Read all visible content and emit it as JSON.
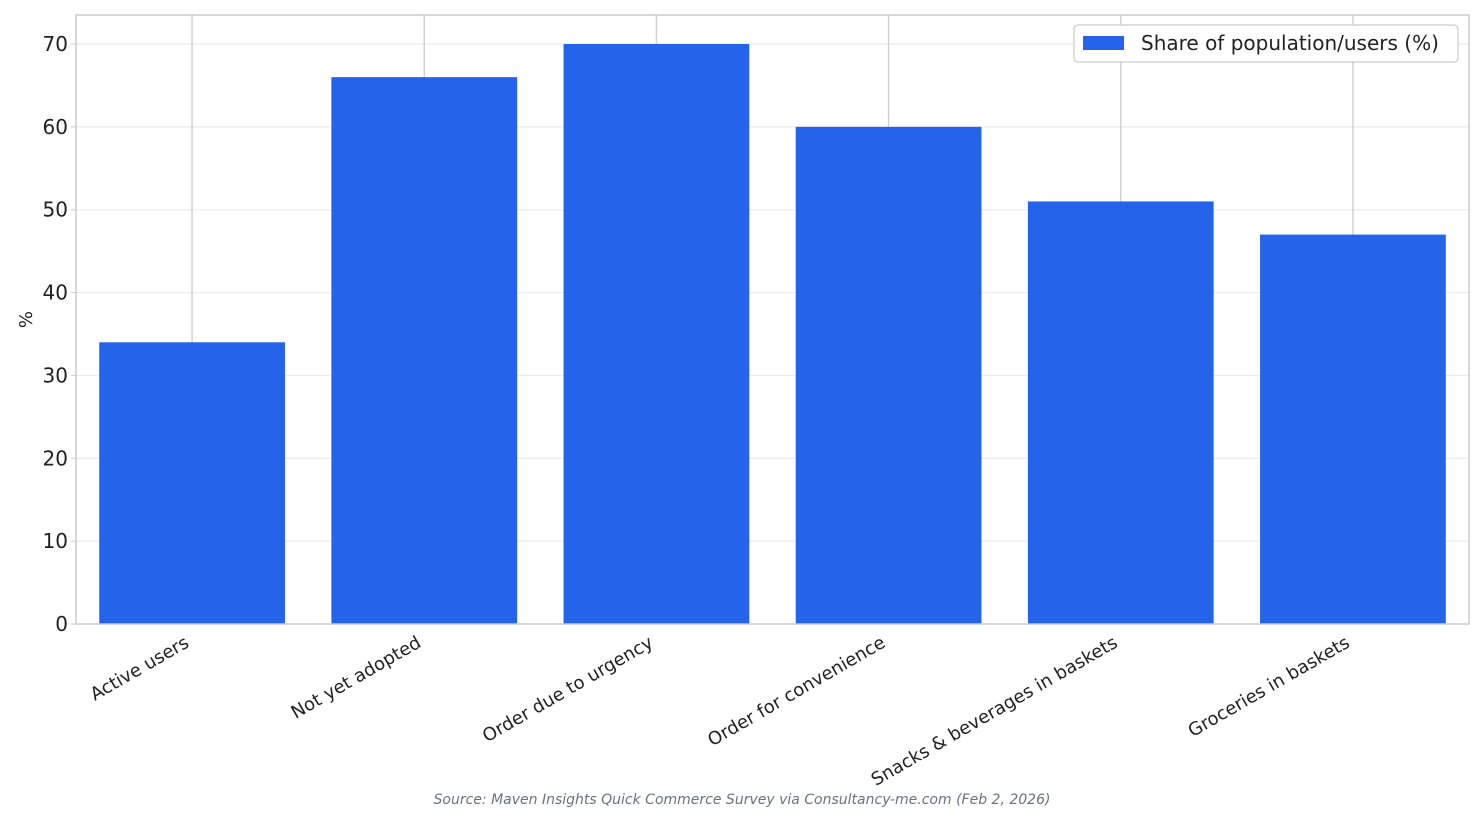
{
  "chart_data": {
    "type": "bar",
    "title": "",
    "xlabel": "",
    "ylabel": "%",
    "categories": [
      "Active users",
      "Not yet adopted",
      "Order due to urgency",
      "Order for convenience",
      "Snacks & beverages in baskets",
      "Groceries in baskets"
    ],
    "series": [
      {
        "name": "Share of population/users (%)",
        "values": [
          34,
          66,
          70,
          60,
          51,
          47
        ],
        "color": "#2563eb"
      }
    ],
    "ylim": [
      0,
      73.5
    ],
    "yticks": [
      0,
      10,
      20,
      30,
      40,
      50,
      60,
      70
    ],
    "grid": true,
    "legend_position": "top-right"
  },
  "source_note": "Source: Maven Insights Quick Commerce Survey via Consultancy-me.com (Feb 2, 2026)"
}
